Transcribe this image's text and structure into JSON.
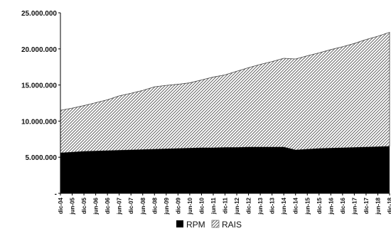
{
  "chart_data": {
    "type": "area",
    "stacked": true,
    "x_tick_labels": [
      "dic-04",
      "jun-05",
      "dic-05",
      "jun-06",
      "dic-06",
      "jun-07",
      "dic-07",
      "jun-08",
      "dic-08",
      "jun-09",
      "dic-09",
      "jun-10",
      "dic-10",
      "jun-11",
      "dic-11",
      "jun-12",
      "dic-12",
      "jun-13",
      "dic-13",
      "jun-14",
      "dic-14",
      "jun-15",
      "dic-15",
      "jun-16",
      "dic-16",
      "jun-17",
      "dic-17",
      "jun-18",
      "dic-18"
    ],
    "y_tick_labels": [
      "-",
      "5.000.000",
      "10.000.000",
      "15.000.000",
      "20.000.000",
      "25.000.000"
    ],
    "ylim": [
      0,
      25000000
    ],
    "series": [
      {
        "name": "RPM",
        "fill": "solid",
        "color": "#000000",
        "values": [
          5600000,
          5700000,
          5800000,
          5850000,
          5900000,
          5950000,
          6000000,
          6050000,
          6100000,
          6150000,
          6200000,
          6250000,
          6300000,
          6300000,
          6350000,
          6350000,
          6400000,
          6400000,
          6400000,
          6400000,
          6000000,
          6100000,
          6200000,
          6250000,
          6300000,
          6350000,
          6400000,
          6450000,
          6500000
        ]
      },
      {
        "name": "RAIS",
        "fill": "hatched",
        "color": "#333333",
        "values": [
          5900000,
          6100000,
          6350000,
          6700000,
          7050000,
          7550000,
          7850000,
          8200000,
          8650000,
          8800000,
          8900000,
          9050000,
          9400000,
          9800000,
          10050000,
          10550000,
          11000000,
          11450000,
          11850000,
          12300000,
          12600000,
          12950000,
          13250000,
          13650000,
          14000000,
          14400000,
          14900000,
          15300000,
          15800000
        ]
      }
    ],
    "legend": {
      "position": "bottom"
    },
    "grid": false
  }
}
